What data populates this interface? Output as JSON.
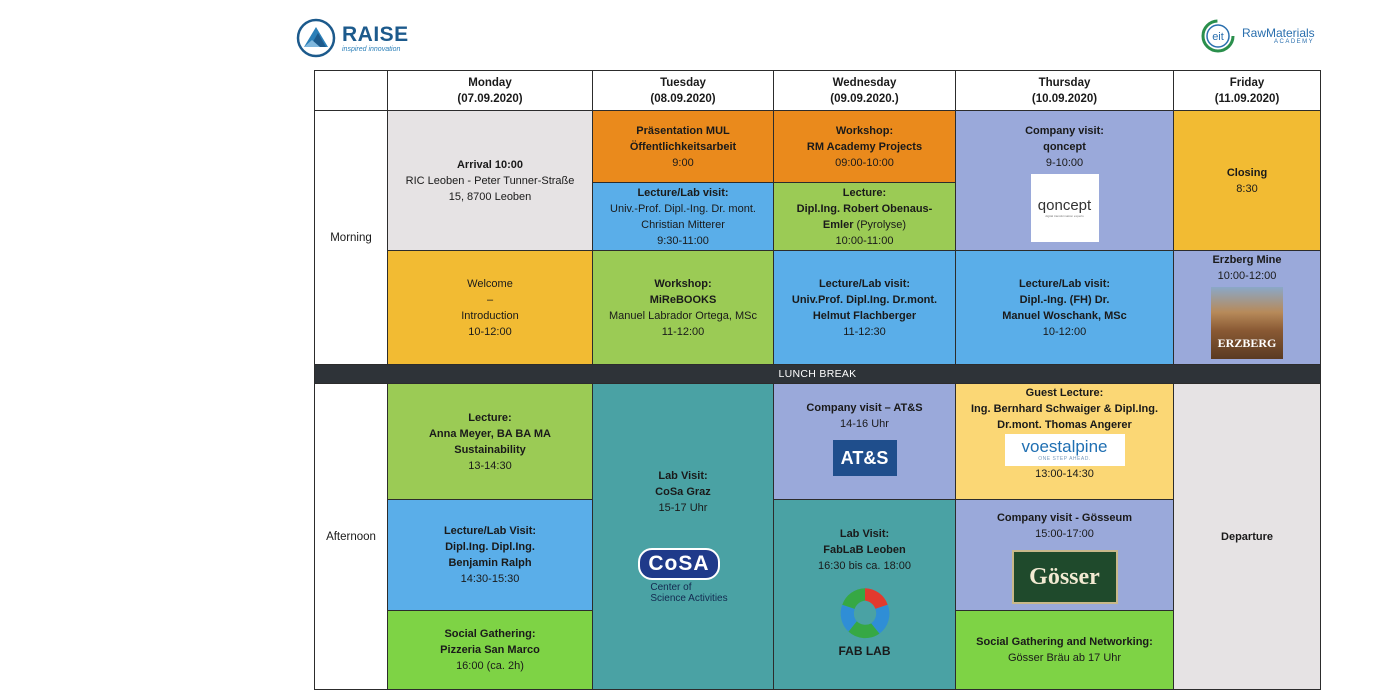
{
  "logos": {
    "raise": {
      "name": "RAISE",
      "tagline": "inspired innovation"
    },
    "eit": {
      "prefix": "eit",
      "name": "RawMaterials",
      "sub": "ACADEMY"
    }
  },
  "headers": {
    "monday": {
      "day": "Monday",
      "date": "(07.09.2020)"
    },
    "tuesday": {
      "day": "Tuesday",
      "date": "(08.09.2020)"
    },
    "wednesday": {
      "day": "Wednesday",
      "date": "(09.09.2020.)"
    },
    "thursday": {
      "day": "Thursday",
      "date": "(10.09.2020)"
    },
    "friday": {
      "day": "Friday",
      "date": "(11.09.2020)"
    }
  },
  "rows": {
    "morning": "Morning",
    "afternoon": "Afternoon",
    "lunch": "LUNCH BREAK"
  },
  "morning": {
    "mon1": {
      "l1": "Arrival 10:00",
      "l2": "RIC Leoben - Peter Tunner-Straße",
      "l3": "15, 8700 Leoben"
    },
    "mon2": {
      "l1": "Welcome",
      "l2": "–",
      "l3": "Introduction",
      "l4": "10-12:00"
    },
    "tue1": {
      "l1": "Präsentation MUL",
      "l2": "Öffentlichkeitsarbeit",
      "l3": "9:00"
    },
    "tue2": {
      "l1": "Lecture/Lab visit:",
      "l2": "Univ.-Prof. Dipl.-Ing. Dr. mont.",
      "l3": "Christian Mitterer",
      "l4": "9:30-11:00"
    },
    "tue3": {
      "l1": "Workshop:",
      "l2": "MiReBOOKS",
      "l3": "Manuel Labrador Ortega, MSc",
      "l4": "11-12:00"
    },
    "wed1": {
      "l1": "Workshop:",
      "l2": "RM Academy Projects",
      "l3": "09:00-10:00"
    },
    "wed2": {
      "l1": "Lecture:",
      "l2": "Dipl.Ing. Robert Obenaus-",
      "l3": "Emler",
      "l3b": " (Pyrolyse)",
      "l4": "10:00-11:00"
    },
    "wed3": {
      "l1": "Lecture/Lab visit:",
      "l2": "Univ.Prof. Dipl.Ing. Dr.mont.",
      "l3": "Helmut Flachberger",
      "l4": "11-12:30"
    },
    "thu1": {
      "l1": "Company visit:",
      "l2": "qoncept",
      "l3": "9-10:00",
      "logo": "qoncept",
      "logo_sub": "digital transformation experts"
    },
    "thu2": {
      "l1": "Lecture/Lab visit:",
      "l2": "Dipl.-Ing. (FH) Dr.",
      "l3": "Manuel Woschank, MSc",
      "l4": "10-12:00"
    },
    "fri1": {
      "l1": "Closing",
      "l2": "8:30"
    },
    "fri2": {
      "l1": "Erzberg Mine",
      "l2": "10:00-12:00",
      "img_label": "ERZBERG"
    }
  },
  "afternoon": {
    "mon1": {
      "l1": "Lecture:",
      "l2": "Anna Meyer, BA BA MA",
      "l3": "Sustainability",
      "l4": "13-14:30"
    },
    "mon2": {
      "l1": "Lecture/Lab Visit:",
      "l2": "Dipl.Ing. Dipl.Ing.",
      "l3": "Benjamin Ralph",
      "l4": "14:30-15:30"
    },
    "mon3": {
      "l1": "Social Gathering:",
      "l2": "Pizzeria San Marco",
      "l3": "16:00 (ca. 2h)"
    },
    "tue1": {
      "l1": "Lab Visit:",
      "l2": "CoSa Graz",
      "l3": "15-17 Uhr",
      "logo": "CoSA",
      "logo_l1": "Center of",
      "logo_l2": "Science Activities"
    },
    "wed1": {
      "l1": "Company visit – AT&S",
      "l2": "14-16 Uhr",
      "logo": "AT&S"
    },
    "wed2": {
      "l1": "Lab Visit:",
      "l2": "FabLaB Leoben",
      "l3": "16:30 bis ca. 18:00",
      "logo": "FAB LAB"
    },
    "thu1": {
      "l1": "Guest Lecture:",
      "l2": "Ing. Bernhard Schwaiger & Dipl.Ing.",
      "l3": "Dr.mont. Thomas Angerer",
      "logo": "voestalpine",
      "logo_sub": "ONE STEP AHEAD.",
      "l4": "13:00-14:30"
    },
    "thu2": {
      "l1": "Company visit - Gösseum",
      "l2": "15:00-17:00",
      "logo": "Gösser"
    },
    "thu3": {
      "l1": "Social Gathering and Networking:",
      "l2": "Gösser Bräu ab 17 Uhr"
    },
    "fri1": {
      "l1": "Departure"
    }
  },
  "colors": {
    "grey": "#e6e3e4",
    "orange": "#ea8a1c",
    "blue": "#5aaee9",
    "green": "#9bcb55",
    "yellow": "#f2bb33",
    "periwinkle": "#9aa9da",
    "teal": "#4aa2a4",
    "lime": "#7ed345",
    "light_yellow": "#fbd775",
    "lunch_bar": "#2e3338"
  }
}
